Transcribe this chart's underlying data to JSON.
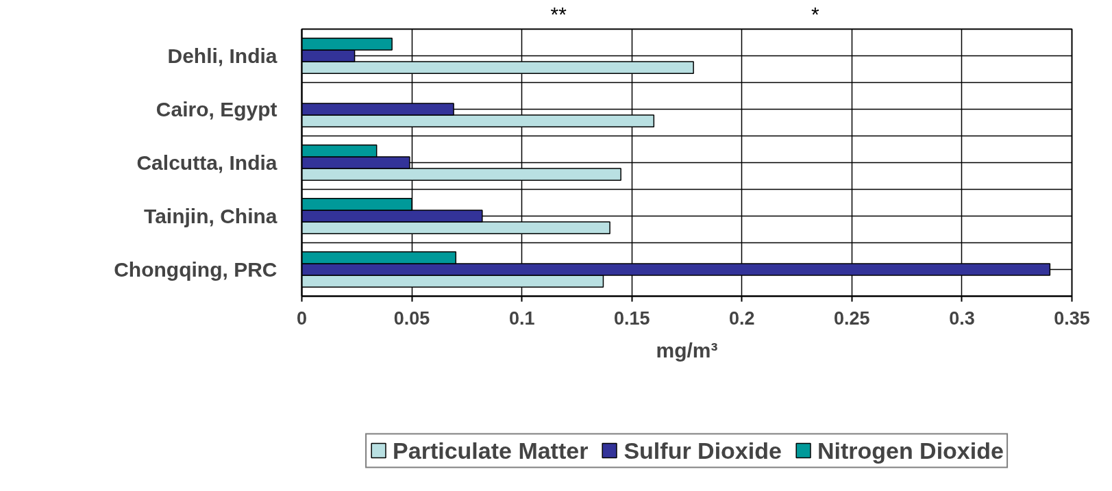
{
  "chart_data": {
    "type": "bar",
    "orientation": "horizontal",
    "xlabel": "mg/m³",
    "categories": [
      "Dehli, India",
      "Cairo, Egypt",
      "Calcutta, India",
      "Tainjin, China",
      "Chongqing, PRC"
    ],
    "series": [
      {
        "name": "Particulate Matter",
        "color": "#b9e0e2",
        "values": [
          0.178,
          0.16,
          0.145,
          0.14,
          0.137
        ]
      },
      {
        "name": "Sulfur Dioxide",
        "color": "#333399",
        "values": [
          0.024,
          0.069,
          0.049,
          0.082,
          0.34
        ]
      },
      {
        "name": "Nitrogen Dioxide",
        "color": "#009999",
        "values": [
          0.041,
          null,
          0.034,
          0.05,
          0.07
        ]
      }
    ],
    "xlim": [
      0,
      0.35
    ],
    "xticks": [
      0,
      0.05,
      0.1,
      0.15,
      0.2,
      0.25,
      0.3,
      0.35
    ],
    "grid": true,
    "legend": "bottom",
    "annotations": [
      "**",
      "*"
    ]
  }
}
